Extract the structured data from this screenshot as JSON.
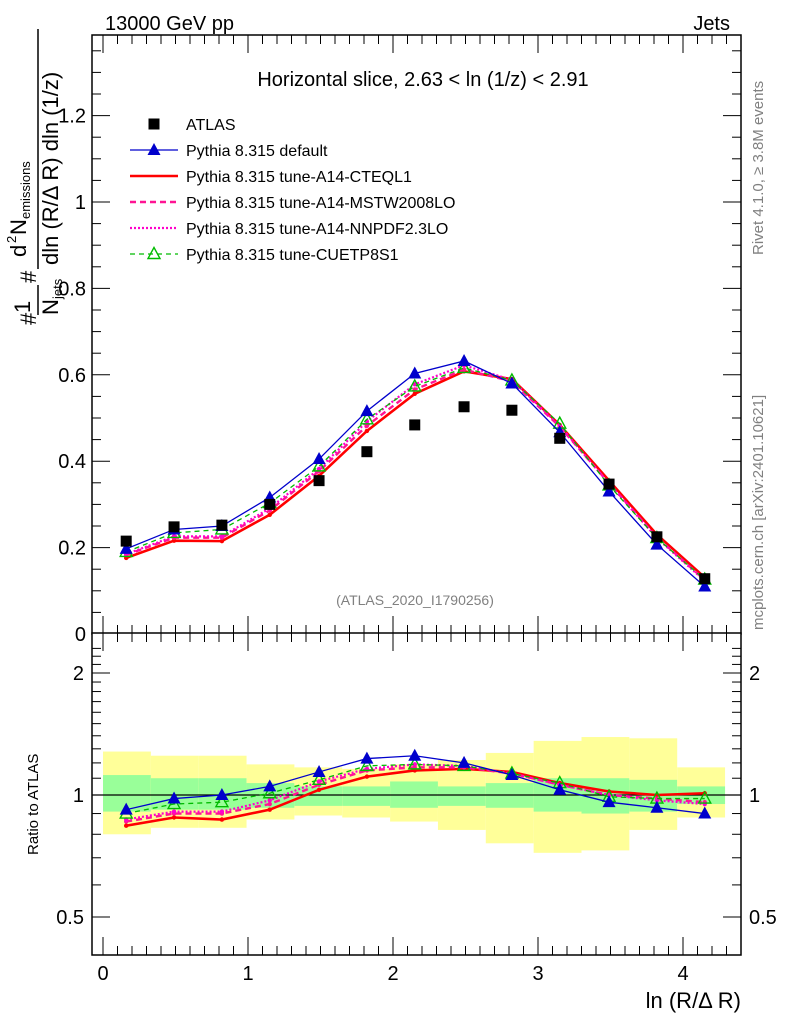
{
  "header": {
    "left_label": "13000 GeV pp",
    "right_label": "Jets"
  },
  "side_labels": {
    "rivet": "Rivet 4.1.0, ≥ 3.8M events",
    "mcplots": "mcplots.cern.ch [arXiv:2401.10621]"
  },
  "chart_data": [
    {
      "type": "line",
      "panel": "main",
      "title": "Horizontal slice, 2.63 < ln (1/z) < 2.91",
      "watermark": "(ATLAS_2020_I1790256)",
      "xlabel": "ln (R/Δ R)",
      "ylabel_parts": {
        "prefix": "#",
        "one": "1",
        "n_jets": "N",
        "n_jets_sub": "jets",
        "hash": "#",
        "numerator": "d",
        "numerator_sup": "2",
        "n_em": "N",
        "n_em_sub": "emissions",
        "denominator": "dln (R/Δ R) dln (1/z)"
      },
      "xlim": [
        -0.075,
        4.4
      ],
      "ylim": [
        0,
        1.387
      ],
      "yticks": [
        "0",
        "0.2",
        "0.4",
        "0.6",
        "0.8",
        "1",
        "1.2"
      ],
      "xticks": [
        "0",
        "1",
        "2",
        "3",
        "4"
      ],
      "legend_position": "top-left",
      "x": [
        0.16,
        0.49,
        0.82,
        1.15,
        1.49,
        1.82,
        2.15,
        2.49,
        2.82,
        3.15,
        3.49,
        3.82,
        4.15
      ],
      "series": [
        {
          "name": "ATLAS",
          "style": "marker-square",
          "color": "#000000",
          "values": [
            0.215,
            0.248,
            0.252,
            0.3,
            0.355,
            0.422,
            0.484,
            0.526,
            0.518,
            0.453,
            0.347,
            0.225,
            0.128
          ]
        },
        {
          "name": "Pythia 8.315 default",
          "style": "solid-triangle",
          "color": "#0000cc",
          "values": [
            0.197,
            0.242,
            0.25,
            0.316,
            0.405,
            0.516,
            0.603,
            0.632,
            0.58,
            0.467,
            0.33,
            0.207,
            0.11
          ]
        },
        {
          "name": "Pythia 8.315 tune-A14-CTEQL1",
          "style": "solid-thick",
          "color": "#ff0000",
          "values": [
            0.176,
            0.216,
            0.215,
            0.276,
            0.366,
            0.47,
            0.556,
            0.608,
            0.59,
            0.484,
            0.355,
            0.23,
            0.131
          ]
        },
        {
          "name": "Pythia 8.315 tune-A14-MSTW2008LO",
          "style": "dashed",
          "color": "#ff1493",
          "values": [
            0.183,
            0.223,
            0.223,
            0.286,
            0.377,
            0.482,
            0.566,
            0.612,
            0.585,
            0.48,
            0.349,
            0.224,
            0.125
          ]
        },
        {
          "name": "Pythia 8.315 tune-A14-NNPDF2.3LO",
          "style": "dotted",
          "color": "#ff00cc",
          "values": [
            0.185,
            0.226,
            0.226,
            0.291,
            0.382,
            0.492,
            0.578,
            0.622,
            0.588,
            0.482,
            0.348,
            0.222,
            0.123
          ]
        },
        {
          "name": "Pythia 8.315 tune-CUETP8S1",
          "style": "dashed-open-triangle",
          "color": "#00bb00",
          "values": [
            0.19,
            0.234,
            0.242,
            0.303,
            0.388,
            0.497,
            0.573,
            0.616,
            0.587,
            0.487,
            0.344,
            0.222,
            0.126
          ]
        }
      ]
    },
    {
      "type": "line",
      "panel": "ratio",
      "ylabel": "Ratio to ATLAS",
      "yscale": "log",
      "ylim": [
        0.39,
        2.4
      ],
      "yticks": [
        "0.5",
        "1",
        "2"
      ],
      "xlabel": "ln (R/Δ R)",
      "x_edges": [
        0.0,
        0.33,
        0.66,
        0.99,
        1.32,
        1.65,
        1.98,
        2.31,
        2.64,
        2.97,
        3.3,
        3.63,
        3.96,
        4.29
      ],
      "band_inner": {
        "color": "#99ff99",
        "lo": [
          0.91,
          0.92,
          0.92,
          0.93,
          0.94,
          0.94,
          0.93,
          0.94,
          0.93,
          0.91,
          0.9,
          0.91,
          0.95
        ],
        "hi": [
          1.12,
          1.1,
          1.1,
          1.07,
          1.05,
          1.05,
          1.08,
          1.05,
          1.07,
          1.1,
          1.1,
          1.09,
          1.05
        ]
      },
      "band_outer": {
        "color": "#ffff99",
        "lo": [
          0.8,
          0.83,
          0.83,
          0.87,
          0.89,
          0.88,
          0.86,
          0.82,
          0.76,
          0.72,
          0.73,
          0.82,
          0.88
        ],
        "hi": [
          1.28,
          1.25,
          1.25,
          1.19,
          1.17,
          1.16,
          1.19,
          1.22,
          1.27,
          1.36,
          1.39,
          1.38,
          1.17
        ]
      },
      "x": [
        0.16,
        0.49,
        0.82,
        1.15,
        1.49,
        1.82,
        2.15,
        2.49,
        2.82,
        3.15,
        3.49,
        3.82,
        4.15
      ],
      "series": [
        {
          "name": "Pythia 8.315 default",
          "color": "#0000cc",
          "values": [
            0.92,
            0.98,
            1.0,
            1.05,
            1.14,
            1.23,
            1.25,
            1.2,
            1.12,
            1.03,
            0.96,
            0.93,
            0.9
          ]
        },
        {
          "name": "Pythia 8.315 tune-A14-CTEQL1",
          "color": "#ff0000",
          "values": [
            0.84,
            0.88,
            0.87,
            0.92,
            1.03,
            1.11,
            1.15,
            1.16,
            1.14,
            1.07,
            1.02,
            1.0,
            1.01
          ]
        },
        {
          "name": "Pythia 8.315 tune-A14-MSTW2008LO",
          "color": "#ff1493",
          "values": [
            0.86,
            0.9,
            0.9,
            0.95,
            1.06,
            1.15,
            1.17,
            1.17,
            1.13,
            1.06,
            1.0,
            0.98,
            0.96
          ]
        },
        {
          "name": "Pythia 8.315 tune-A14-NNPDF2.3LO",
          "color": "#ff00cc",
          "values": [
            0.87,
            0.91,
            0.91,
            0.97,
            1.08,
            1.16,
            1.19,
            1.18,
            1.13,
            1.06,
            1.0,
            0.97,
            0.95
          ]
        },
        {
          "name": "Pythia 8.315 tune-CUETP8S1",
          "color": "#00bb00",
          "values": [
            0.9,
            0.95,
            0.96,
            1.01,
            1.09,
            1.18,
            1.19,
            1.18,
            1.13,
            1.07,
            0.99,
            0.98,
            0.98
          ]
        }
      ]
    }
  ]
}
